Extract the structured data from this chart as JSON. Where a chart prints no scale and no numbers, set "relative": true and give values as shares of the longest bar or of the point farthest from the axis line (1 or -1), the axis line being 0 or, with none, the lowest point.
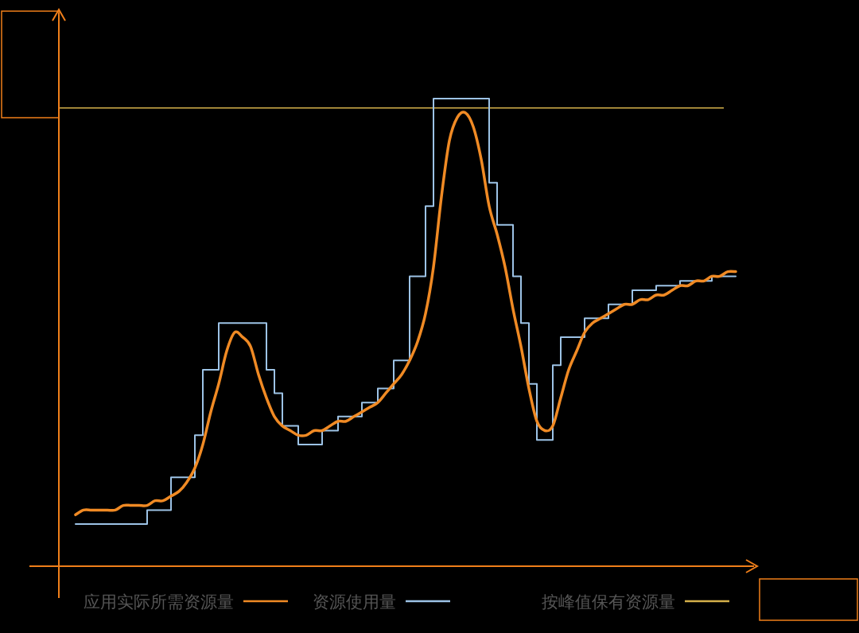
{
  "chart_data": {
    "type": "line",
    "relative": true,
    "legend": "bottom",
    "marker": "none",
    "line_style": "solid",
    "categories": [
      null,
      null,
      null,
      null,
      null,
      null,
      null,
      null,
      null,
      null,
      null,
      null,
      null,
      null,
      null,
      null,
      null,
      null,
      null,
      null,
      null,
      null,
      null,
      null,
      null,
      null,
      null,
      null,
      null,
      null,
      null,
      null,
      null,
      null,
      null,
      null,
      null,
      null,
      null,
      null,
      null,
      null,
      null,
      null,
      null,
      null,
      null,
      null,
      null,
      null,
      null,
      null,
      null,
      null,
      null,
      null,
      null,
      null,
      null,
      null,
      null,
      null,
      null,
      null,
      null,
      null,
      null,
      null,
      null,
      null,
      null,
      null,
      null,
      null,
      null,
      null,
      null,
      null,
      null,
      null,
      null,
      null,
      null,
      null
    ],
    "series": [
      {
        "name": "应用实际所需资源量",
        "type": "line",
        "color": "#f08a24",
        "values": [
          0.11,
          0.12,
          0.12,
          0.12,
          0.12,
          0.12,
          0.13,
          0.13,
          0.13,
          0.13,
          0.14,
          0.14,
          0.15,
          0.16,
          0.18,
          0.21,
          0.26,
          0.33,
          0.39,
          0.46,
          0.5,
          0.49,
          0.47,
          0.41,
          0.36,
          0.32,
          0.3,
          0.29,
          0.28,
          0.28,
          0.29,
          0.29,
          0.3,
          0.31,
          0.31,
          0.32,
          0.33,
          0.34,
          0.35,
          0.37,
          0.39,
          0.41,
          0.44,
          0.48,
          0.54,
          0.64,
          0.79,
          0.91,
          0.96,
          0.97,
          0.94,
          0.87,
          0.77,
          0.71,
          0.64,
          0.55,
          0.47,
          0.38,
          0.31,
          0.29,
          0.3,
          0.36,
          0.42,
          0.46,
          0.5,
          0.52,
          0.53,
          0.54,
          0.55,
          0.56,
          0.56,
          0.57,
          0.57,
          0.58,
          0.58,
          0.59,
          0.6,
          0.6,
          0.61,
          0.61,
          0.62,
          0.62,
          0.63,
          0.63
        ]
      },
      {
        "name": "资源使用量",
        "type": "step",
        "color": "#9dc3e6",
        "values": [
          0.09,
          0.09,
          0.09,
          0.09,
          0.09,
          0.09,
          0.09,
          0.09,
          0.09,
          0.12,
          0.12,
          0.12,
          0.19,
          0.19,
          0.19,
          0.28,
          0.42,
          0.42,
          0.52,
          0.52,
          0.52,
          0.52,
          0.52,
          0.52,
          0.42,
          0.37,
          0.3,
          0.3,
          0.26,
          0.26,
          0.26,
          0.29,
          0.29,
          0.32,
          0.32,
          0.32,
          0.35,
          0.35,
          0.38,
          0.38,
          0.44,
          0.44,
          0.62,
          0.62,
          0.77,
          1,
          1,
          1,
          1,
          1,
          1,
          1,
          0.82,
          0.73,
          0.73,
          0.62,
          0.52,
          0.39,
          0.27,
          0.27,
          0.43,
          0.49,
          0.49,
          0.49,
          0.53,
          0.53,
          0.53,
          0.56,
          0.56,
          0.56,
          0.59,
          0.59,
          0.59,
          0.6,
          0.6,
          0.6,
          0.61,
          0.61,
          0.61,
          0.61,
          0.62,
          0.62,
          0.62,
          0.62
        ]
      }
    ],
    "ref_lines": [
      {
        "axis": "y",
        "value": 0.98,
        "label": "按峰值保有资源量",
        "color": "#d4b04a"
      }
    ]
  }
}
